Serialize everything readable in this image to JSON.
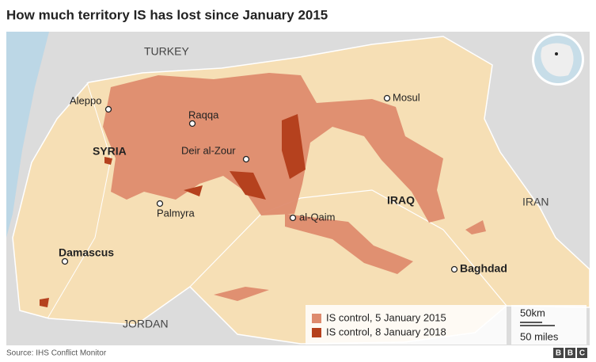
{
  "title": "How much territory IS has lost since January 2015",
  "countries": [
    "TURKEY",
    "SYRIA",
    "IRAQ",
    "IRAN",
    "JORDAN"
  ],
  "cities": [
    "Aleppo",
    "Raqqa",
    "Deir al-Zour",
    "Mosul",
    "Palmyra",
    "al-Qaim",
    "Damascus",
    "Baghdad"
  ],
  "legend": [
    {
      "label": "IS control, 5 January 2015",
      "color": "#de8b6e"
    },
    {
      "label": "IS control, 8 January 2018",
      "color": "#b5411e"
    }
  ],
  "scale": [
    "50km",
    "50 miles"
  ],
  "source": "Source: IHS Conflict Monitor",
  "logo": [
    "B",
    "B",
    "C"
  ]
}
